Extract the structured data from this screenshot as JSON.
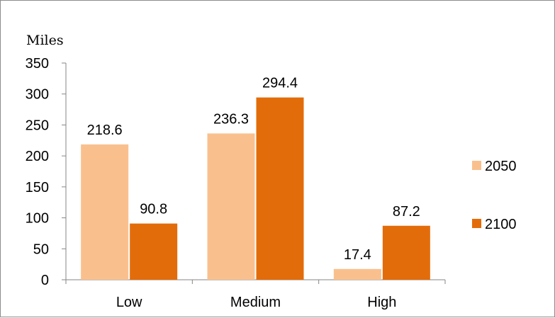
{
  "chart_data": {
    "type": "bar",
    "title": "",
    "xlabel": "",
    "ylabel": "Miles",
    "categories": [
      "Low",
      "Medium",
      "High"
    ],
    "series": [
      {
        "name": "2050",
        "values": [
          218.6,
          236.3,
          17.4
        ],
        "color": "#f9c08e"
      },
      {
        "name": "2100",
        "values": [
          90.8,
          294.4,
          87.2
        ],
        "color": "#e36c0a"
      }
    ],
    "ylim": [
      0,
      350
    ],
    "yticks": [
      0,
      50,
      100,
      150,
      200,
      250,
      300,
      350
    ],
    "data_labels": true,
    "grid": false,
    "legend_position": "right"
  }
}
